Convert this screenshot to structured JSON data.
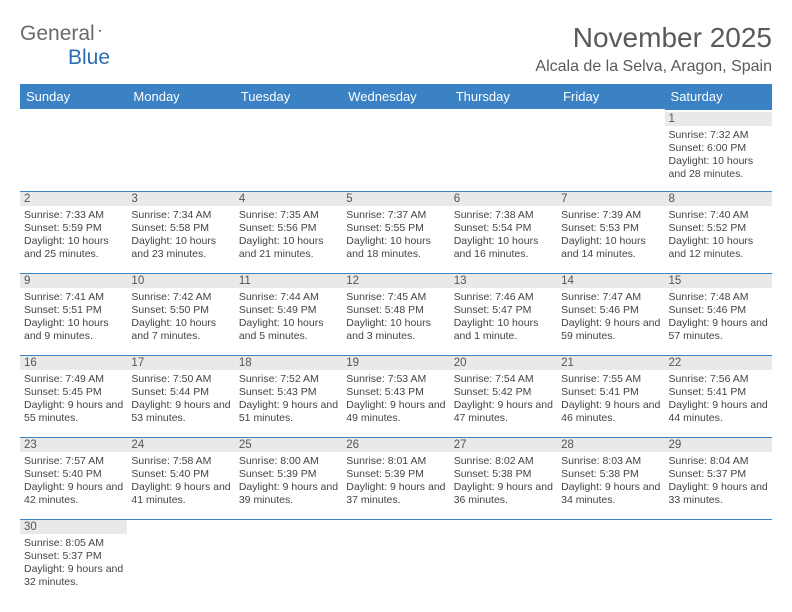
{
  "logo": {
    "text1": "General",
    "text2": "Blue"
  },
  "title": "November 2025",
  "location": "Alcala de la Selva, Aragon, Spain",
  "colors": {
    "header_bg": "#3b82c4",
    "header_text": "#ffffff",
    "daynum_bg": "#e9e9e8",
    "text": "#444444",
    "logo_gray": "#6a6a6a",
    "logo_blue": "#2a6fb5"
  },
  "weekdays": [
    "Sunday",
    "Monday",
    "Tuesday",
    "Wednesday",
    "Thursday",
    "Friday",
    "Saturday"
  ],
  "weeks": [
    [
      null,
      null,
      null,
      null,
      null,
      null,
      {
        "d": "1",
        "sr": "Sunrise: 7:32 AM",
        "ss": "Sunset: 6:00 PM",
        "dl": "Daylight: 10 hours and 28 minutes."
      }
    ],
    [
      {
        "d": "2",
        "sr": "Sunrise: 7:33 AM",
        "ss": "Sunset: 5:59 PM",
        "dl": "Daylight: 10 hours and 25 minutes."
      },
      {
        "d": "3",
        "sr": "Sunrise: 7:34 AM",
        "ss": "Sunset: 5:58 PM",
        "dl": "Daylight: 10 hours and 23 minutes."
      },
      {
        "d": "4",
        "sr": "Sunrise: 7:35 AM",
        "ss": "Sunset: 5:56 PM",
        "dl": "Daylight: 10 hours and 21 minutes."
      },
      {
        "d": "5",
        "sr": "Sunrise: 7:37 AM",
        "ss": "Sunset: 5:55 PM",
        "dl": "Daylight: 10 hours and 18 minutes."
      },
      {
        "d": "6",
        "sr": "Sunrise: 7:38 AM",
        "ss": "Sunset: 5:54 PM",
        "dl": "Daylight: 10 hours and 16 minutes."
      },
      {
        "d": "7",
        "sr": "Sunrise: 7:39 AM",
        "ss": "Sunset: 5:53 PM",
        "dl": "Daylight: 10 hours and 14 minutes."
      },
      {
        "d": "8",
        "sr": "Sunrise: 7:40 AM",
        "ss": "Sunset: 5:52 PM",
        "dl": "Daylight: 10 hours and 12 minutes."
      }
    ],
    [
      {
        "d": "9",
        "sr": "Sunrise: 7:41 AM",
        "ss": "Sunset: 5:51 PM",
        "dl": "Daylight: 10 hours and 9 minutes."
      },
      {
        "d": "10",
        "sr": "Sunrise: 7:42 AM",
        "ss": "Sunset: 5:50 PM",
        "dl": "Daylight: 10 hours and 7 minutes."
      },
      {
        "d": "11",
        "sr": "Sunrise: 7:44 AM",
        "ss": "Sunset: 5:49 PM",
        "dl": "Daylight: 10 hours and 5 minutes."
      },
      {
        "d": "12",
        "sr": "Sunrise: 7:45 AM",
        "ss": "Sunset: 5:48 PM",
        "dl": "Daylight: 10 hours and 3 minutes."
      },
      {
        "d": "13",
        "sr": "Sunrise: 7:46 AM",
        "ss": "Sunset: 5:47 PM",
        "dl": "Daylight: 10 hours and 1 minute."
      },
      {
        "d": "14",
        "sr": "Sunrise: 7:47 AM",
        "ss": "Sunset: 5:46 PM",
        "dl": "Daylight: 9 hours and 59 minutes."
      },
      {
        "d": "15",
        "sr": "Sunrise: 7:48 AM",
        "ss": "Sunset: 5:46 PM",
        "dl": "Daylight: 9 hours and 57 minutes."
      }
    ],
    [
      {
        "d": "16",
        "sr": "Sunrise: 7:49 AM",
        "ss": "Sunset: 5:45 PM",
        "dl": "Daylight: 9 hours and 55 minutes."
      },
      {
        "d": "17",
        "sr": "Sunrise: 7:50 AM",
        "ss": "Sunset: 5:44 PM",
        "dl": "Daylight: 9 hours and 53 minutes."
      },
      {
        "d": "18",
        "sr": "Sunrise: 7:52 AM",
        "ss": "Sunset: 5:43 PM",
        "dl": "Daylight: 9 hours and 51 minutes."
      },
      {
        "d": "19",
        "sr": "Sunrise: 7:53 AM",
        "ss": "Sunset: 5:43 PM",
        "dl": "Daylight: 9 hours and 49 minutes."
      },
      {
        "d": "20",
        "sr": "Sunrise: 7:54 AM",
        "ss": "Sunset: 5:42 PM",
        "dl": "Daylight: 9 hours and 47 minutes."
      },
      {
        "d": "21",
        "sr": "Sunrise: 7:55 AM",
        "ss": "Sunset: 5:41 PM",
        "dl": "Daylight: 9 hours and 46 minutes."
      },
      {
        "d": "22",
        "sr": "Sunrise: 7:56 AM",
        "ss": "Sunset: 5:41 PM",
        "dl": "Daylight: 9 hours and 44 minutes."
      }
    ],
    [
      {
        "d": "23",
        "sr": "Sunrise: 7:57 AM",
        "ss": "Sunset: 5:40 PM",
        "dl": "Daylight: 9 hours and 42 minutes."
      },
      {
        "d": "24",
        "sr": "Sunrise: 7:58 AM",
        "ss": "Sunset: 5:40 PM",
        "dl": "Daylight: 9 hours and 41 minutes."
      },
      {
        "d": "25",
        "sr": "Sunrise: 8:00 AM",
        "ss": "Sunset: 5:39 PM",
        "dl": "Daylight: 9 hours and 39 minutes."
      },
      {
        "d": "26",
        "sr": "Sunrise: 8:01 AM",
        "ss": "Sunset: 5:39 PM",
        "dl": "Daylight: 9 hours and 37 minutes."
      },
      {
        "d": "27",
        "sr": "Sunrise: 8:02 AM",
        "ss": "Sunset: 5:38 PM",
        "dl": "Daylight: 9 hours and 36 minutes."
      },
      {
        "d": "28",
        "sr": "Sunrise: 8:03 AM",
        "ss": "Sunset: 5:38 PM",
        "dl": "Daylight: 9 hours and 34 minutes."
      },
      {
        "d": "29",
        "sr": "Sunrise: 8:04 AM",
        "ss": "Sunset: 5:37 PM",
        "dl": "Daylight: 9 hours and 33 minutes."
      }
    ],
    [
      {
        "d": "30",
        "sr": "Sunrise: 8:05 AM",
        "ss": "Sunset: 5:37 PM",
        "dl": "Daylight: 9 hours and 32 minutes."
      },
      null,
      null,
      null,
      null,
      null,
      null
    ]
  ]
}
